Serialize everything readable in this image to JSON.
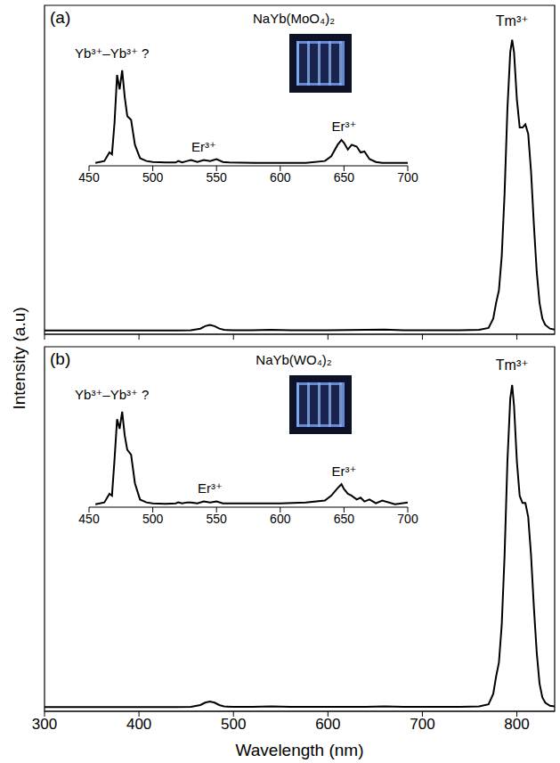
{
  "chart_data": [
    {
      "type": "line",
      "panel": "(a)",
      "title": "NaYb(MoO₄)₂",
      "ylabel": "Intensity (a.u)",
      "color": "#000000",
      "x": [
        300,
        320,
        340,
        360,
        380,
        400,
        420,
        440,
        455,
        465,
        470,
        475,
        480,
        485,
        490,
        500,
        520,
        540,
        560,
        600,
        640,
        660,
        680,
        700,
        720,
        740,
        760,
        770,
        775,
        778,
        781,
        784,
        787,
        790,
        793,
        795,
        797,
        800,
        803,
        806,
        809,
        812,
        815,
        818,
        821,
        824,
        827,
        830,
        835,
        840
      ],
      "values": [
        0.012,
        0.012,
        0.012,
        0.012,
        0.012,
        0.012,
        0.012,
        0.012,
        0.013,
        0.018,
        0.026,
        0.03,
        0.026,
        0.018,
        0.014,
        0.013,
        0.013,
        0.014,
        0.013,
        0.013,
        0.014,
        0.015,
        0.013,
        0.013,
        0.013,
        0.013,
        0.014,
        0.02,
        0.05,
        0.1,
        0.14,
        0.25,
        0.45,
        0.72,
        0.9,
        0.94,
        0.9,
        0.75,
        0.66,
        0.66,
        0.67,
        0.64,
        0.52,
        0.35,
        0.2,
        0.1,
        0.05,
        0.03,
        0.018,
        0.015
      ],
      "xlim": [
        300,
        840
      ],
      "xticks": [
        300,
        400,
        500,
        600,
        700,
        800
      ],
      "ylim": [
        0,
        1.05
      ],
      "tick_labels": false,
      "annotations": [
        {
          "text": "Tm³⁺",
          "x": 795,
          "y": 0.97
        }
      ],
      "inset": {
        "type": "line",
        "color": "#000000",
        "x": [
          455,
          462,
          466,
          468,
          470,
          472,
          474,
          476,
          478,
          480,
          483,
          486,
          490,
          495,
          500,
          510,
          518,
          520,
          523,
          527,
          530,
          535,
          540,
          545,
          550,
          555,
          560,
          580,
          600,
          620,
          635,
          640,
          645,
          648,
          650,
          653,
          656,
          660,
          663,
          666,
          670,
          675,
          680,
          690,
          700
        ],
        "values": [
          0.03,
          0.05,
          0.14,
          0.12,
          0.45,
          0.95,
          0.8,
          1.0,
          0.72,
          0.52,
          0.48,
          0.22,
          0.08,
          0.05,
          0.04,
          0.035,
          0.035,
          0.05,
          0.035,
          0.05,
          0.06,
          0.04,
          0.06,
          0.05,
          0.07,
          0.04,
          0.035,
          0.03,
          0.03,
          0.03,
          0.05,
          0.1,
          0.22,
          0.27,
          0.24,
          0.17,
          0.22,
          0.2,
          0.14,
          0.15,
          0.07,
          0.04,
          0.03,
          0.03,
          0.03
        ],
        "xlim": [
          450,
          700
        ],
        "xticks": [
          450,
          500,
          550,
          600,
          650,
          700
        ],
        "ylim": [
          0,
          1.25
        ],
        "tick_labels": "x",
        "annotations": [
          {
            "text": "Yb³⁺–Yb³⁺ ?",
            "x": 468,
            "y": 1.08
          },
          {
            "text": "Er³⁺",
            "x": 540,
            "y": 0.1
          },
          {
            "text": "Er³⁺",
            "x": 650,
            "y": 0.32
          }
        ]
      }
    },
    {
      "type": "line",
      "panel": "(b)",
      "title": "NaYb(WO₄)₂",
      "xlabel": "Wavelength (nm)",
      "color": "#000000",
      "x": [
        300,
        320,
        340,
        360,
        380,
        400,
        420,
        440,
        455,
        465,
        470,
        475,
        480,
        485,
        490,
        500,
        520,
        540,
        560,
        600,
        640,
        660,
        680,
        700,
        720,
        740,
        760,
        770,
        775,
        778,
        781,
        784,
        787,
        790,
        793,
        795,
        797,
        800,
        803,
        806,
        809,
        812,
        815,
        818,
        821,
        824,
        827,
        830,
        835,
        840
      ],
      "values": [
        0.012,
        0.012,
        0.012,
        0.012,
        0.012,
        0.012,
        0.012,
        0.012,
        0.013,
        0.018,
        0.025,
        0.028,
        0.025,
        0.018,
        0.014,
        0.013,
        0.013,
        0.014,
        0.013,
        0.013,
        0.013,
        0.014,
        0.013,
        0.013,
        0.013,
        0.013,
        0.014,
        0.02,
        0.05,
        0.1,
        0.14,
        0.25,
        0.45,
        0.72,
        0.9,
        0.94,
        0.88,
        0.72,
        0.62,
        0.6,
        0.6,
        0.56,
        0.45,
        0.3,
        0.17,
        0.08,
        0.04,
        0.025,
        0.016,
        0.014
      ],
      "xlim": [
        300,
        840
      ],
      "xticks": [
        300,
        400,
        500,
        600,
        700,
        800
      ],
      "ylim": [
        0,
        1.05
      ],
      "tick_labels": "x",
      "annotations": [
        {
          "text": "Tm³⁺",
          "x": 795,
          "y": 0.97
        }
      ],
      "inset": {
        "type": "line",
        "color": "#000000",
        "x": [
          455,
          462,
          466,
          468,
          470,
          472,
          474,
          476,
          478,
          480,
          483,
          486,
          490,
          495,
          500,
          510,
          518,
          520,
          523,
          527,
          530,
          535,
          540,
          545,
          550,
          555,
          560,
          580,
          600,
          620,
          635,
          640,
          645,
          648,
          650,
          653,
          656,
          660,
          663,
          666,
          670,
          675,
          680,
          690,
          700
        ],
        "values": [
          0.03,
          0.05,
          0.14,
          0.12,
          0.5,
          0.92,
          0.82,
          1.0,
          0.75,
          0.6,
          0.55,
          0.25,
          0.08,
          0.05,
          0.04,
          0.035,
          0.04,
          0.05,
          0.04,
          0.05,
          0.05,
          0.04,
          0.06,
          0.05,
          0.06,
          0.04,
          0.04,
          0.04,
          0.04,
          0.05,
          0.07,
          0.12,
          0.2,
          0.24,
          0.19,
          0.14,
          0.12,
          0.08,
          0.1,
          0.06,
          0.08,
          0.04,
          0.07,
          0.03,
          0.05
        ],
        "xlim": [
          450,
          700
        ],
        "xticks": [
          450,
          500,
          550,
          600,
          650,
          700
        ],
        "ylim": [
          0,
          1.25
        ],
        "tick_labels": "x",
        "annotations": [
          {
            "text": "Yb³⁺–Yb³⁺ ?",
            "x": 468,
            "y": 1.08
          },
          {
            "text": "Er³⁺",
            "x": 545,
            "y": 0.1
          },
          {
            "text": "Er³⁺",
            "x": 650,
            "y": 0.28
          }
        ]
      }
    }
  ]
}
